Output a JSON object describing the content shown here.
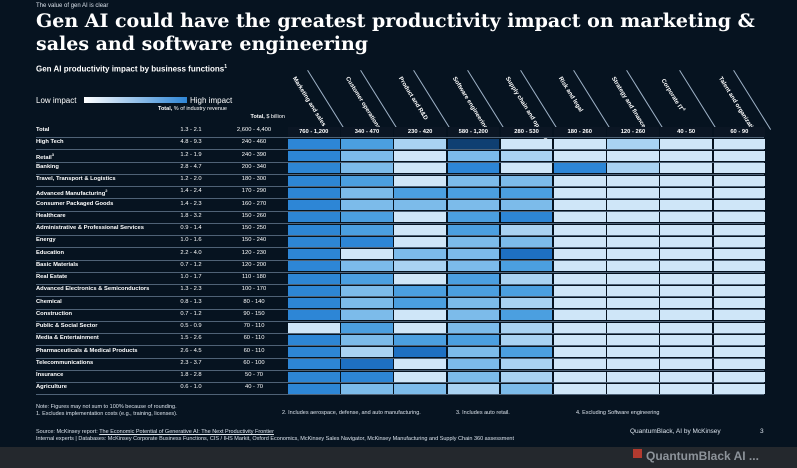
{
  "kicker": "The value of gen AI is clear",
  "headline": "Gen AI could have the greatest productivity impact on marketing & sales and software engineering",
  "subtitle": "Gen AI productivity impact by business functions",
  "subtitle_footnote": "1",
  "legend": {
    "low": "Low impact",
    "high": "High impact",
    "low_color": "#ffffff",
    "high_color": "#2f86d6"
  },
  "headers": {
    "range_title": "Total,",
    "range_sub": "% of industry revenue",
    "value_title": "Total,",
    "value_sub": "$ billion"
  },
  "columns": [
    "Marketing and sales",
    "Customer operations",
    "Product and R&D",
    "Software engineering",
    "Supply chain and operations",
    "Risk and legal",
    "Strategy and finance",
    "Corporate IT",
    "Talent and organization"
  ],
  "column_footnotes": [
    "",
    "",
    "",
    "",
    "",
    "",
    "",
    "4",
    ""
  ],
  "total_row": {
    "label": "Total",
    "range": "1.3 - 2.1",
    "value": "2,600 - 4,400",
    "cells": [
      "760 - 1,200",
      "340 - 470",
      "230 - 420",
      "580 - 1,200",
      "280 - 530",
      "180 - 260",
      "120 - 260",
      "40 - 50",
      "60 - 90"
    ]
  },
  "palette": [
    "#f2f8fd",
    "#cfe6f8",
    "#a9d2f2",
    "#7cbbea",
    "#4b9fe0",
    "#2d86d6",
    "#1e70c2",
    "#0f3f72"
  ],
  "rows": [
    {
      "label": "High Tech",
      "fn": "",
      "range": "4.8 - 9.3",
      "value": "240 - 460",
      "levels": [
        5,
        4,
        2,
        7,
        1,
        1,
        2,
        1,
        1
      ]
    },
    {
      "label": "Retail",
      "fn": "3",
      "range": "1.2 - 1.9",
      "value": "240 - 390",
      "levels": [
        5,
        3,
        1,
        3,
        2,
        1,
        1,
        1,
        1
      ]
    },
    {
      "label": "Banking",
      "fn": "",
      "range": "2.8 - 4.7",
      "value": "200 - 340",
      "levels": [
        5,
        3,
        1,
        5,
        1,
        5,
        2,
        1,
        1
      ]
    },
    {
      "label": "Travel, Transport & Logistics",
      "fn": "",
      "range": "1.2 - 2.0",
      "value": "180 - 300",
      "levels": [
        5,
        4,
        1,
        3,
        3,
        1,
        1,
        1,
        1
      ]
    },
    {
      "label": "Advanced Manufacturing",
      "fn": "2",
      "range": "1.4 - 2.4",
      "value": "170 - 290",
      "levels": [
        5,
        3,
        4,
        4,
        4,
        1,
        1,
        1,
        1
      ]
    },
    {
      "label": "Consumer Packaged Goods",
      "fn": "",
      "range": "1.4 - 2.3",
      "value": "160 - 270",
      "levels": [
        5,
        3,
        3,
        3,
        3,
        1,
        1,
        1,
        1
      ]
    },
    {
      "label": "Healthcare",
      "fn": "",
      "range": "1.8 - 3.2",
      "value": "150 - 260",
      "levels": [
        5,
        4,
        1,
        4,
        5,
        1,
        1,
        1,
        1
      ]
    },
    {
      "label": "Administrative & Professional Services",
      "fn": "",
      "range": "0.9 - 1.4",
      "value": "150 - 250",
      "levels": [
        5,
        4,
        1,
        4,
        2,
        1,
        1,
        1,
        1
      ]
    },
    {
      "label": "Energy",
      "fn": "",
      "range": "1.0 - 1.6",
      "value": "150 - 240",
      "levels": [
        5,
        5,
        1,
        3,
        3,
        1,
        1,
        1,
        1
      ]
    },
    {
      "label": "Education",
      "fn": "",
      "range": "2.2 - 4.0",
      "value": "120 - 230",
      "levels": [
        5,
        1,
        3,
        3,
        6,
        1,
        1,
        1,
        1
      ]
    },
    {
      "label": "Basic Materials",
      "fn": "",
      "range": "0.7 - 1.2",
      "value": "120 - 200",
      "levels": [
        5,
        3,
        2,
        3,
        4,
        1,
        1,
        1,
        1
      ]
    },
    {
      "label": "Real Estate",
      "fn": "",
      "range": "1.0 - 1.7",
      "value": "110 - 180",
      "levels": [
        5,
        4,
        1,
        4,
        2,
        1,
        1,
        1,
        1
      ]
    },
    {
      "label": "Advanced Electronics & Semiconductors",
      "fn": "",
      "range": "1.3 - 2.3",
      "value": "100 - 170",
      "levels": [
        5,
        3,
        4,
        4,
        4,
        1,
        1,
        1,
        1
      ]
    },
    {
      "label": "Chemical",
      "fn": "",
      "range": "0.8 - 1.3",
      "value": "80 - 140",
      "levels": [
        5,
        3,
        4,
        3,
        2,
        1,
        1,
        1,
        1
      ]
    },
    {
      "label": "Construction",
      "fn": "",
      "range": "0.7 - 1.2",
      "value": "90 - 150",
      "levels": [
        5,
        3,
        1,
        3,
        4,
        1,
        1,
        1,
        1
      ]
    },
    {
      "label": "Public & Social Sector",
      "fn": "",
      "range": "0.5 - 0.9",
      "value": "70 - 110",
      "levels": [
        1,
        4,
        1,
        3,
        2,
        1,
        1,
        1,
        1
      ]
    },
    {
      "label": "Media & Entertainment",
      "fn": "",
      "range": "1.5 - 2.6",
      "value": "60 - 110",
      "levels": [
        5,
        3,
        4,
        4,
        2,
        1,
        1,
        1,
        1
      ]
    },
    {
      "label": "Pharmaceuticals & Medical Products",
      "fn": "",
      "range": "2.6 - 4.5",
      "value": "60 - 110",
      "levels": [
        5,
        2,
        6,
        3,
        4,
        1,
        1,
        1,
        1
      ]
    },
    {
      "label": "Telecommunications",
      "fn": "",
      "range": "2.3 - 3.7",
      "value": "60 - 100",
      "levels": [
        5,
        6,
        1,
        3,
        2,
        1,
        1,
        1,
        1
      ]
    },
    {
      "label": "Insurance",
      "fn": "",
      "range": "1.8 - 2.8",
      "value": "50 - 70",
      "levels": [
        5,
        5,
        1,
        3,
        2,
        1,
        1,
        1,
        1
      ]
    },
    {
      "label": "Agriculture",
      "fn": "",
      "range": "0.6 - 1.0",
      "value": "40 - 70",
      "levels": [
        5,
        3,
        3,
        2,
        3,
        1,
        1,
        1,
        1
      ]
    }
  ],
  "notes": {
    "line1": "Note: Figures may not sum to 100% because of rounding.",
    "line2": "1.    Excludes implementation costs (e.g., training, licenses).",
    "note2": "2. Includes aerospace, defense, and auto manufacturing.",
    "note3": "3. Includes auto retail.",
    "note4": "4. Excluding Software engineering"
  },
  "source": {
    "prefix": "Source: McKinsey report: ",
    "link": "The Economic Potential of Generative AI: The Next Productivity Frontier",
    "line2": "Internal experts | Databases: McKinsey Corporate Business Functions, CIS / IHS Markit, Oxford Economics, McKinsey Sales Navigator, McKinsey Manufacturing and Supply Chain 360 assessment"
  },
  "brand": "QuantumBlack, AI by McKinsey",
  "page_number": "3",
  "strip_text": "QuantumBlack AI ..."
}
